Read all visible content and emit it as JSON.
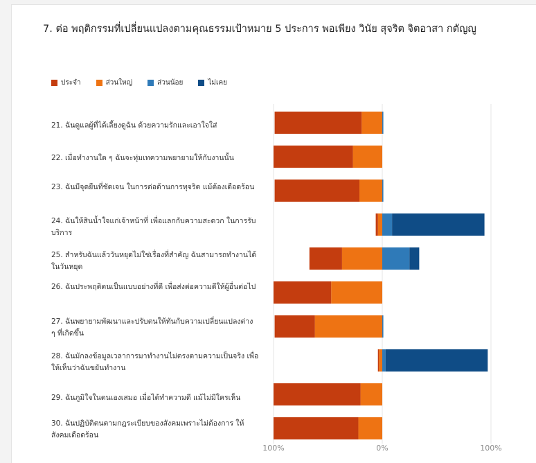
{
  "title": "7.  ต่อ พฤติกรรมที่เปลี่ยนแปลงตามคุณธรรมเป้าหมาย 5 ประการ พอเพียง วินัย สุจริต จิตอาสา กตัญญู",
  "colors": {
    "ประจำ": "#c43d0f",
    "ส่วนใหญ่": "#ee7313",
    "ส่วนน้อย": "#2f7ab8",
    "ไม่เคย": "#0f4c86"
  },
  "chart_data": {
    "type": "bar",
    "orientation": "horizontal-diverging",
    "legend_position": "top-left",
    "grid": true,
    "xlim": [
      -100,
      100
    ],
    "ticks": [
      "100%",
      "0%",
      "100%"
    ],
    "negative_series": [
      "ประจำ",
      "ส่วนใหญ่"
    ],
    "positive_series": [
      "ส่วนน้อย",
      "ไม่เคย"
    ],
    "categories": [
      "21. ฉันดูแลผู้ที่ได้เลี้ยงดูฉัน ด้วยความรักและเอาใจใส่",
      "22. เมื่อทำงานใด ๆ ฉันจะทุ่มเทความพยายามให้กับงานนั้น",
      "23. ฉันมีจุดยืนที่ชัดเจน ในการต่อต้านการทุจริต แม้ต้องเดือดร้อน",
      "24. ฉันให้สินน้ำใจแก่เจ้าหน้าที่ เพื่อแลกกับความสะดวก ในการรับบริการ",
      "25. สำหรับฉันแล้ววันหยุดไม่ใช่เรื่องที่สำคัญ ฉันสามารถทำงานได้ในวันหยุด",
      "26. ฉันประพฤติตนเป็นแบบอย่างที่ดี เพื่อส่งต่อความดีให้ผู้อื่นต่อไป",
      "27. ฉันพยายามพัฒนาและปรับตนให้ทันกับความเปลี่ยนแปลงต่าง ๆ ที่เกิดขึ้น",
      "28. ฉันมักลงข้อมูลเวลาการมาทำงานไม่ตรงตามความเป็นจริง เพื่อให้เห็นว่าฉันขยันทำงาน",
      "29. ฉันภูมิใจในตนเองเสมอ เมื่อได้ทำความดี แม้ไม่มีใครเห็น",
      "30. ฉันปฏิบัติตนตามกฎระเบียบของสังคมเพราะไม่ต้องการ ให้สังคมเดือดร้อน"
    ],
    "series": [
      {
        "name": "ประจำ",
        "values": [
          80,
          73,
          78,
          2,
          30,
          53,
          37,
          1,
          80,
          78
        ]
      },
      {
        "name": "ส่วนใหญ่",
        "values": [
          19,
          27,
          21,
          4,
          37,
          47,
          62,
          3,
          20,
          22
        ]
      },
      {
        "name": "ส่วนน้อย",
        "values": [
          1,
          0,
          1,
          9,
          25,
          0,
          1,
          3,
          0,
          0
        ]
      },
      {
        "name": "ไม่เคย",
        "values": [
          0,
          0,
          0,
          85,
          9,
          0,
          0,
          94,
          0,
          0
        ]
      }
    ]
  }
}
